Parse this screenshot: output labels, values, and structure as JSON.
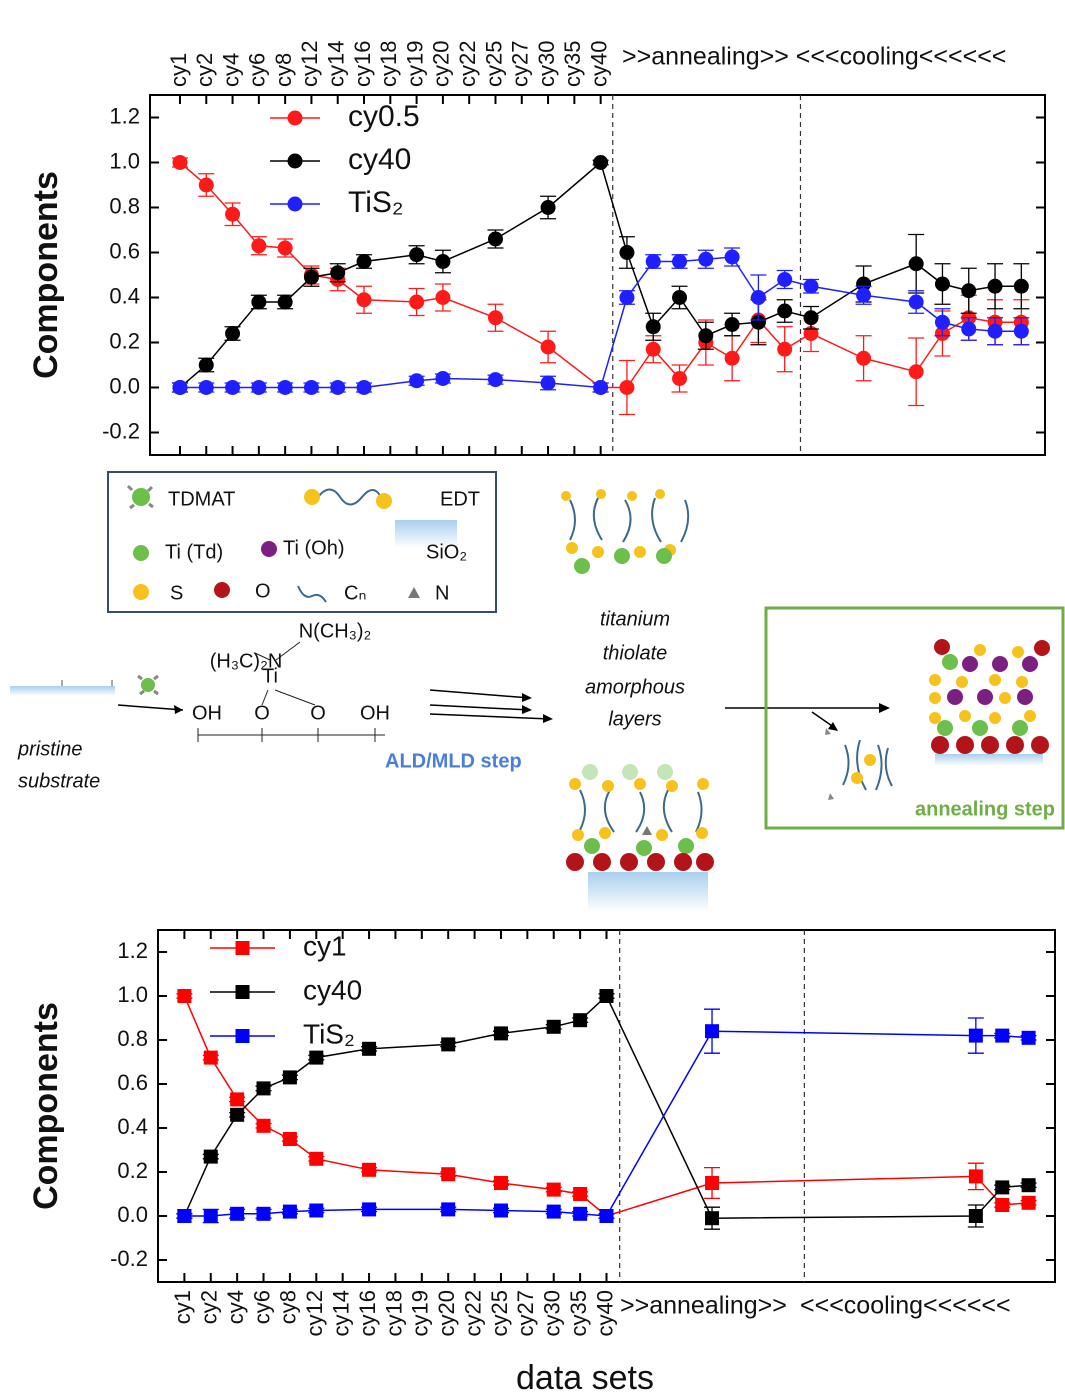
{
  "chart_data": [
    {
      "type": "line",
      "ylabel": "Components",
      "x_axis_position": "top",
      "marker": "circle",
      "legend": "upper left",
      "xlim": [
        -0.14,
        33.9
      ],
      "ylim": [
        -0.3,
        1.3
      ],
      "xticks": [
        {
          "value": 1,
          "label": "cy1"
        },
        {
          "value": 2,
          "label": "cy2"
        },
        {
          "value": 3,
          "label": "cy4"
        },
        {
          "value": 4,
          "label": "cy6"
        },
        {
          "value": 5,
          "label": "cy8"
        },
        {
          "value": 6,
          "label": "cy12"
        },
        {
          "value": 7,
          "label": "cy14"
        },
        {
          "value": 8,
          "label": "cy16"
        },
        {
          "value": 9,
          "label": "cy18"
        },
        {
          "value": 10,
          "label": "cy19"
        },
        {
          "value": 11,
          "label": "cy20"
        },
        {
          "value": 12,
          "label": "cy22"
        },
        {
          "value": 13,
          "label": "cy25"
        },
        {
          "value": 14,
          "label": "cy27"
        },
        {
          "value": 15,
          "label": "cy30"
        },
        {
          "value": 16,
          "label": "cy35"
        },
        {
          "value": 17,
          "label": "cy40"
        }
      ],
      "yticks": [
        -0.2,
        {
          "value": 0,
          "label": "0.0"
        },
        0.2,
        0.4,
        0.6,
        0.8,
        {
          "value": 1,
          "label": "1.0"
        },
        1.2
      ],
      "vlines": [
        17.46,
        24.6
      ],
      "annotations": [
        ">>annealing>> <<<cooling<<<<<<"
      ],
      "x": [
        1,
        2,
        3,
        4,
        5,
        6,
        7,
        8,
        10,
        11,
        13,
        15,
        17,
        18,
        19,
        20,
        21,
        22,
        23,
        24,
        25,
        27,
        29,
        30,
        31,
        32,
        33
      ],
      "series": [
        {
          "name": "cy0.5",
          "color": "#ff1a1a",
          "values": [
            1.0,
            0.9,
            0.77,
            0.63,
            0.62,
            0.5,
            0.48,
            0.39,
            0.38,
            0.4,
            0.31,
            0.18,
            0.0,
            0.0,
            0.17,
            0.04,
            0.2,
            0.13,
            0.3,
            0.17,
            0.24,
            0.13,
            0.07,
            0.24,
            0.31,
            0.29,
            0.29
          ],
          "errors": [
            0.02,
            0.05,
            0.05,
            0.04,
            0.04,
            0.04,
            0.05,
            0.06,
            0.06,
            0.06,
            0.06,
            0.07,
            0.02,
            0.12,
            0.06,
            0.06,
            0.1,
            0.1,
            0.1,
            0.1,
            0.08,
            0.1,
            0.15,
            0.1,
            0.1,
            0.1,
            0.1
          ]
        },
        {
          "name": "cy40",
          "color": "#000000",
          "values": [
            0.0,
            0.1,
            0.24,
            0.38,
            0.38,
            0.49,
            0.51,
            0.56,
            0.59,
            0.56,
            0.66,
            0.8,
            1.0,
            0.6,
            0.27,
            0.4,
            0.23,
            0.28,
            0.29,
            0.34,
            0.31,
            0.46,
            0.55,
            0.46,
            0.43,
            0.45,
            0.45
          ],
          "errors": [
            0.02,
            0.03,
            0.03,
            0.03,
            0.03,
            0.04,
            0.04,
            0.03,
            0.04,
            0.05,
            0.04,
            0.05,
            0.01,
            0.07,
            0.06,
            0.05,
            0.06,
            0.05,
            0.1,
            0.05,
            0.05,
            0.08,
            0.13,
            0.09,
            0.1,
            0.1,
            0.1
          ]
        },
        {
          "name": "TiS₂",
          "color": "#1f1fff",
          "values": [
            0,
            0,
            0,
            0,
            0,
            0,
            0,
            0,
            0.03,
            0.04,
            0.035,
            0.02,
            0.0,
            0.4,
            0.56,
            0.56,
            0.57,
            0.58,
            0.4,
            0.48,
            0.45,
            0.41,
            0.38,
            0.29,
            0.26,
            0.25,
            0.25
          ],
          "errors": [
            0.02,
            0.02,
            0.02,
            0.02,
            0.02,
            0.02,
            0.02,
            0.02,
            0.02,
            0.02,
            0.02,
            0.03,
            0.02,
            0.03,
            0.03,
            0.03,
            0.04,
            0.04,
            0.1,
            0.04,
            0.03,
            0.04,
            0.05,
            0.06,
            0.05,
            0.06,
            0.06
          ]
        }
      ]
    },
    {
      "type": "line",
      "ylabel": "Components",
      "xlabel": "data sets",
      "x_axis_position": "bottom",
      "marker": "square",
      "legend": "upper left",
      "xlim": [
        0,
        34
      ],
      "ylim": [
        -0.3,
        1.3
      ],
      "xticks": [
        {
          "value": 1,
          "label": "cy1"
        },
        {
          "value": 2,
          "label": "cy2"
        },
        {
          "value": 3,
          "label": "cy4"
        },
        {
          "value": 4,
          "label": "cy6"
        },
        {
          "value": 5,
          "label": "cy8"
        },
        {
          "value": 6,
          "label": "cy12"
        },
        {
          "value": 7,
          "label": "cy14"
        },
        {
          "value": 8,
          "label": "cy16"
        },
        {
          "value": 9,
          "label": "cy18"
        },
        {
          "value": 10,
          "label": "cy19"
        },
        {
          "value": 11,
          "label": "cy20"
        },
        {
          "value": 12,
          "label": "cy22"
        },
        {
          "value": 13,
          "label": "cy25"
        },
        {
          "value": 14,
          "label": "cy27"
        },
        {
          "value": 15,
          "label": "cy30"
        },
        {
          "value": 16,
          "label": "cy35"
        },
        {
          "value": 17,
          "label": "cy40"
        }
      ],
      "yticks": [
        -0.2,
        {
          "value": 0,
          "label": "0.0"
        },
        0.2,
        0.4,
        0.6,
        0.8,
        {
          "value": 1,
          "label": "1.0"
        },
        1.2
      ],
      "vlines": [
        17.5,
        24.5
      ],
      "annotations": [
        ">>annealing>>",
        "<<<cooling<<<<<<"
      ],
      "x": [
        1,
        2,
        3,
        4,
        5,
        6,
        8,
        11,
        13,
        15,
        16,
        17,
        21,
        31,
        32,
        33
      ],
      "series": [
        {
          "name": "cy1",
          "color": "#ff0000",
          "values": [
            1.0,
            0.72,
            0.53,
            0.41,
            0.35,
            0.26,
            0.21,
            0.19,
            0.15,
            0.12,
            0.1,
            0.0,
            0.15,
            0.18,
            0.05,
            0.06
          ],
          "errors": [
            0.01,
            0.01,
            0.01,
            0.01,
            0.01,
            0.01,
            0.01,
            0.01,
            0.01,
            0.01,
            0.01,
            0.01,
            0.07,
            0.06,
            0.01,
            0.01
          ]
        },
        {
          "name": "cy40",
          "color": "#000000",
          "values": [
            0.0,
            0.27,
            0.46,
            0.58,
            0.63,
            0.72,
            0.76,
            0.78,
            0.83,
            0.86,
            0.89,
            1.0,
            -0.01,
            0.0,
            0.13,
            0.14
          ],
          "errors": [
            0.01,
            0.01,
            0.01,
            0.01,
            0.01,
            0.01,
            0.01,
            0.01,
            0.01,
            0.01,
            0.01,
            0.01,
            0.05,
            0.05,
            0.01,
            0.01
          ]
        },
        {
          "name": "TiS₂",
          "color": "#0000ff",
          "values": [
            0,
            0,
            0.01,
            0.01,
            0.02,
            0.025,
            0.03,
            0.03,
            0.025,
            0.02,
            0.01,
            0.0,
            0.84,
            0.82,
            0.82,
            0.81
          ],
          "errors": [
            0.01,
            0.03,
            0.02,
            0.02,
            0.01,
            0.01,
            0.01,
            0.01,
            0.01,
            0.01,
            0.01,
            0.01,
            0.1,
            0.08,
            0.01,
            0.01
          ]
        }
      ]
    }
  ],
  "diagram": {
    "legend": {
      "tdmat": "TDMAT",
      "edt": "EDT",
      "ti_td": "Ti (Td)",
      "ti_oh": "Ti (Oh)",
      "sio2": "SiO₂",
      "s": "S",
      "o": "O",
      "cn": "Cₙ",
      "n": "N"
    },
    "molecule": {
      "left_group": "(H₃C)₂N",
      "right_group": "N(CH₃)₂",
      "center": "Ti",
      "surface": [
        "OH",
        "O",
        "O",
        "OH"
      ]
    },
    "substrate_label": [
      "pristine",
      "substrate"
    ],
    "ald_step": "ALD/MLD step",
    "layers_label": [
      "titanium",
      "thiolate",
      "amorphous",
      "layers"
    ],
    "annealing_step": "annealing step"
  }
}
